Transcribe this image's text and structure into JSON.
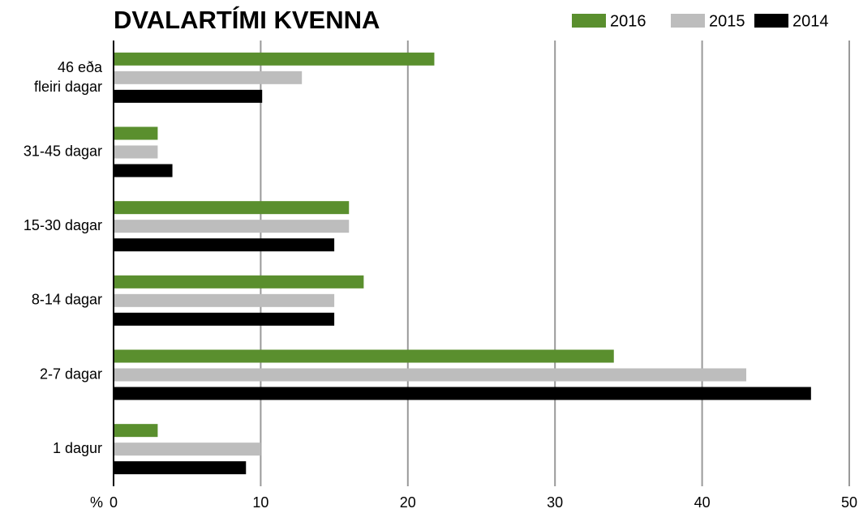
{
  "chart_data": {
    "type": "bar",
    "orientation": "horizontal",
    "title": "DVALARTÍMI KVENNA",
    "x_label": "%",
    "categories": [
      "46 eða\nfleiri dagar",
      "31-45 dagar",
      "15-30 dagar",
      "8-14 dagar",
      "2-7 dagar",
      "1 dagur"
    ],
    "series": [
      {
        "name": "2016",
        "color": "#5a8f2e",
        "values": [
          21.8,
          3,
          16,
          17,
          34,
          3
        ]
      },
      {
        "name": "2015",
        "color": "#bdbdbd",
        "values": [
          12.8,
          3,
          16,
          15,
          43,
          10
        ]
      },
      {
        "name": "2014",
        "color": "#000000",
        "values": [
          10.1,
          4,
          15,
          15,
          47.4,
          9
        ]
      }
    ],
    "xlim": [
      0,
      50
    ],
    "xticks": [
      0,
      10,
      20,
      30,
      40,
      50
    ],
    "grid": true,
    "legend": "top-right"
  }
}
